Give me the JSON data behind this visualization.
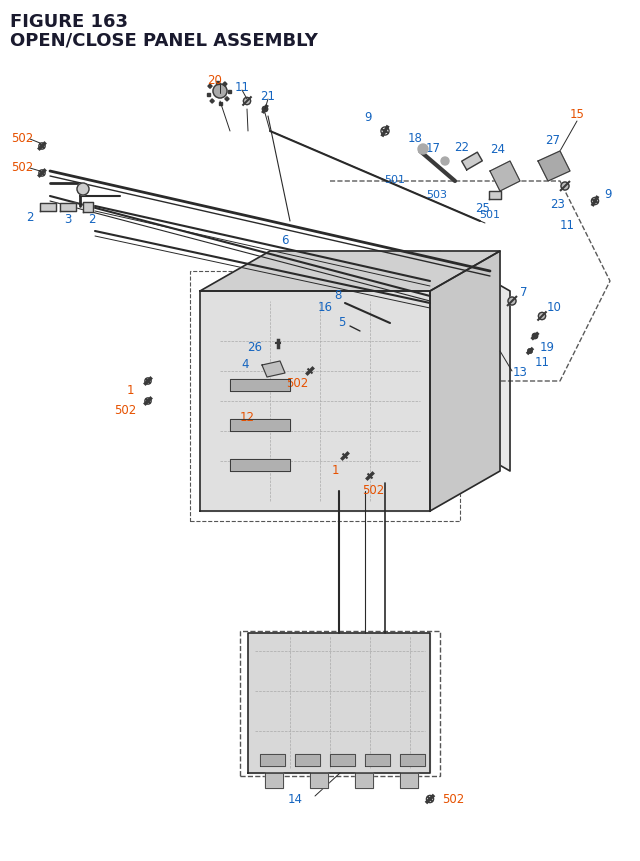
{
  "title_line1": "FIGURE 163",
  "title_line2": "OPEN/CLOSE PANEL ASSEMBLY",
  "title_color": "#1a1a2e",
  "title_fontsize": 13,
  "bg_color": "#ffffff",
  "label_color_blue": "#1565C0",
  "label_color_orange": "#E65100",
  "label_color_black": "#1a1a1a",
  "line_color": "#2a2a2a",
  "part_color": "#3a3a3a",
  "dashed_color": "#5a5a5a"
}
